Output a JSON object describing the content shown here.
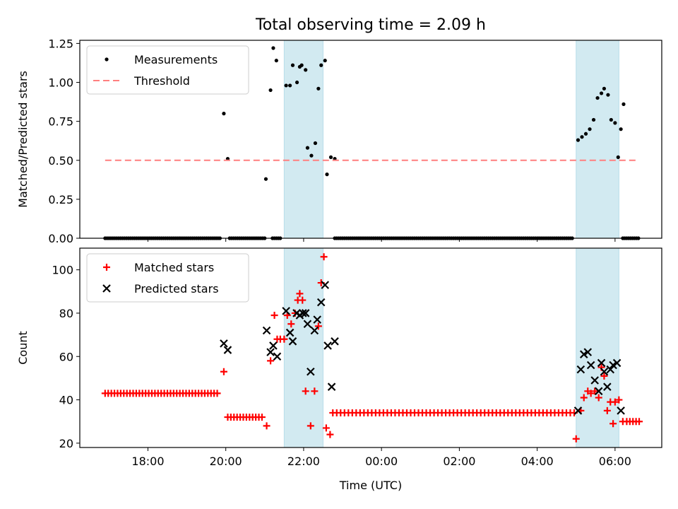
{
  "title": "Total observing time = 2.09 h",
  "chart_data": [
    {
      "type": "scatter",
      "ylabel": "Matched/Predicted stars",
      "xlabel": "",
      "xlim": [
        16.25,
        31.2
      ],
      "ylim": [
        0,
        1.27
      ],
      "yticks": [
        "0.00",
        "0.25",
        "0.50",
        "0.75",
        "1.00",
        "1.25"
      ],
      "legend_position": "top-left",
      "bands": [
        [
          21.5,
          22.5
        ],
        [
          29.0,
          30.1
        ]
      ],
      "band_color": "#add8e6",
      "series": [
        {
          "name": "Measurements",
          "color": "#000000",
          "marker": "dot",
          "zero_ranges": [
            [
              16.9,
              19.85,
              0.05
            ],
            [
              20.1,
              21.0,
              0.05
            ],
            [
              21.2,
              21.4,
              0.05
            ],
            [
              22.8,
              28.9,
              0.05
            ],
            [
              30.2,
              30.6,
              0.05
            ]
          ],
          "points": [
            [
              19.95,
              0.8
            ],
            [
              20.05,
              0.51
            ],
            [
              21.03,
              0.38
            ],
            [
              21.15,
              0.95
            ],
            [
              21.22,
              1.22
            ],
            [
              21.3,
              1.14
            ],
            [
              21.55,
              0.98
            ],
            [
              21.65,
              0.98
            ],
            [
              21.72,
              1.11
            ],
            [
              21.83,
              1.0
            ],
            [
              21.9,
              1.1
            ],
            [
              21.95,
              1.11
            ],
            [
              22.05,
              1.08
            ],
            [
              22.1,
              0.58
            ],
            [
              22.2,
              0.53
            ],
            [
              22.3,
              0.61
            ],
            [
              22.38,
              0.96
            ],
            [
              22.45,
              1.11
            ],
            [
              22.55,
              1.14
            ],
            [
              22.6,
              0.41
            ],
            [
              22.7,
              0.52
            ],
            [
              22.8,
              0.51
            ],
            [
              29.05,
              0.63
            ],
            [
              29.15,
              0.65
            ],
            [
              29.25,
              0.67
            ],
            [
              29.35,
              0.7
            ],
            [
              29.45,
              0.76
            ],
            [
              29.55,
              0.9
            ],
            [
              29.65,
              0.93
            ],
            [
              29.72,
              0.96
            ],
            [
              29.82,
              0.92
            ],
            [
              29.9,
              0.76
            ],
            [
              30.0,
              0.74
            ],
            [
              30.08,
              0.52
            ],
            [
              30.15,
              0.7
            ],
            [
              30.22,
              0.86
            ]
          ]
        },
        {
          "name": "Threshold",
          "color": "#ff7f7f",
          "style": "dashed",
          "x": [
            16.9,
            30.6
          ],
          "values": [
            0.5,
            0.5
          ]
        }
      ]
    },
    {
      "type": "scatter",
      "ylabel": "Count",
      "xlabel": "Time (UTC)",
      "xlim": [
        16.25,
        31.2
      ],
      "ylim": [
        18,
        110
      ],
      "yticks": [
        "20",
        "40",
        "60",
        "80",
        "100"
      ],
      "xticks": [
        "18:00",
        "20:00",
        "22:00",
        "00:00",
        "02:00",
        "04:00",
        "06:00"
      ],
      "xtick_hours": [
        18,
        20,
        22,
        24,
        26,
        28,
        30
      ],
      "legend_position": "top-left",
      "bands": [
        [
          21.5,
          22.5
        ],
        [
          29.0,
          30.1
        ]
      ],
      "band_color": "#add8e6",
      "series": [
        {
          "name": "Matched stars",
          "color": "#ff0000",
          "marker": "plus",
          "const_ranges": [
            [
              16.9,
              19.85,
              0.08,
              43
            ],
            [
              20.05,
              21.0,
              0.08,
              32
            ],
            [
              22.75,
              28.95,
              0.1,
              34
            ],
            [
              30.3,
              30.65,
              0.08,
              30
            ]
          ],
          "points": [
            [
              19.95,
              53
            ],
            [
              21.05,
              28
            ],
            [
              21.15,
              58
            ],
            [
              21.25,
              79
            ],
            [
              21.32,
              68
            ],
            [
              21.4,
              68
            ],
            [
              21.5,
              68
            ],
            [
              21.58,
              79
            ],
            [
              21.68,
              75
            ],
            [
              21.78,
              80
            ],
            [
              21.85,
              86
            ],
            [
              21.9,
              89
            ],
            [
              21.97,
              86
            ],
            [
              22.05,
              44
            ],
            [
              22.18,
              28
            ],
            [
              22.28,
              44
            ],
            [
              22.38,
              74
            ],
            [
              22.45,
              94
            ],
            [
              22.52,
              106
            ],
            [
              22.58,
              27
            ],
            [
              22.68,
              24
            ],
            [
              29.0,
              22
            ],
            [
              29.12,
              35
            ],
            [
              29.2,
              41
            ],
            [
              29.3,
              44
            ],
            [
              29.38,
              43
            ],
            [
              29.48,
              44
            ],
            [
              29.58,
              41
            ],
            [
              29.65,
              55
            ],
            [
              29.72,
              51
            ],
            [
              29.8,
              35
            ],
            [
              29.88,
              39
            ],
            [
              29.95,
              29
            ],
            [
              30.0,
              39
            ],
            [
              30.1,
              40
            ],
            [
              30.2,
              30
            ]
          ]
        },
        {
          "name": "Predicted stars",
          "color": "#000000",
          "marker": "x",
          "points": [
            [
              19.95,
              66
            ],
            [
              20.05,
              63
            ],
            [
              21.05,
              72
            ],
            [
              21.15,
              62
            ],
            [
              21.22,
              65
            ],
            [
              21.32,
              60
            ],
            [
              21.55,
              81
            ],
            [
              21.65,
              71
            ],
            [
              21.72,
              67
            ],
            [
              21.82,
              80
            ],
            [
              21.9,
              79
            ],
            [
              21.98,
              80
            ],
            [
              22.05,
              80
            ],
            [
              22.1,
              75
            ],
            [
              22.18,
              53
            ],
            [
              22.28,
              72
            ],
            [
              22.35,
              77
            ],
            [
              22.45,
              85
            ],
            [
              22.55,
              93
            ],
            [
              22.62,
              65
            ],
            [
              22.72,
              46
            ],
            [
              22.8,
              67
            ],
            [
              29.05,
              35
            ],
            [
              29.12,
              54
            ],
            [
              29.2,
              61
            ],
            [
              29.3,
              62
            ],
            [
              29.38,
              56
            ],
            [
              29.48,
              49
            ],
            [
              29.58,
              44
            ],
            [
              29.65,
              57
            ],
            [
              29.72,
              53
            ],
            [
              29.8,
              46
            ],
            [
              29.88,
              54
            ],
            [
              29.95,
              56
            ],
            [
              30.05,
              57
            ],
            [
              30.15,
              35
            ]
          ]
        }
      ]
    }
  ]
}
